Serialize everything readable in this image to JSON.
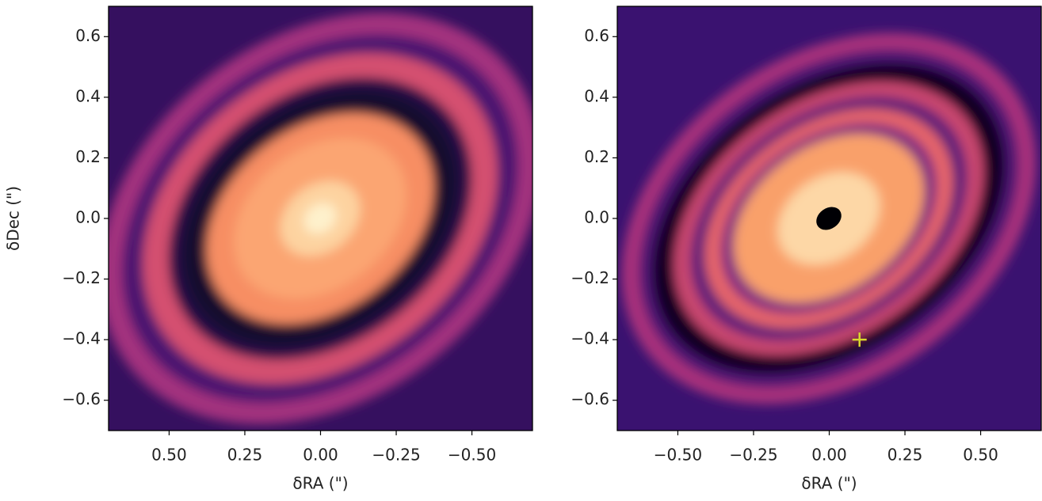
{
  "chart_data": [
    {
      "type": "image",
      "xlabel": "δRA (\")",
      "ylabel": "δDec (\")",
      "xlim": [
        0.7,
        -0.7
      ],
      "ylim": [
        -0.7,
        0.7
      ],
      "xticks": [
        {
          "value": 0.5,
          "label": "0.50"
        },
        {
          "value": 0.25,
          "label": "0.25"
        },
        {
          "value": 0,
          "label": "0.00"
        },
        {
          "value": -0.25,
          "label": "−0.25"
        },
        {
          "value": -0.5,
          "label": "−0.50"
        }
      ],
      "yticks": [
        {
          "value": 0.6,
          "label": "0.6"
        },
        {
          "value": 0.4,
          "label": "0.4"
        },
        {
          "value": 0.2,
          "label": "0.2"
        },
        {
          "value": 0,
          "label": "0.0"
        },
        {
          "value": -0.2,
          "label": "−0.2"
        },
        {
          "value": -0.4,
          "label": "−0.4"
        },
        {
          "value": -0.6,
          "label": "−0.6"
        }
      ],
      "colormap": "magma"
    },
    {
      "type": "image",
      "xlabel": "δRA (\")",
      "xlim": [
        -0.7,
        0.7
      ],
      "ylim": [
        -0.7,
        0.7
      ],
      "xticks": [
        {
          "value": -0.5,
          "label": "−0.50"
        },
        {
          "value": -0.25,
          "label": "−0.25"
        },
        {
          "value": 0,
          "label": "0.00"
        },
        {
          "value": 0.25,
          "label": "0.25"
        },
        {
          "value": 0.5,
          "label": "0.50"
        }
      ],
      "yticks": [
        {
          "value": 0.6,
          "label": "0.6"
        },
        {
          "value": 0.4,
          "label": "0.4"
        },
        {
          "value": 0.2,
          "label": "0.2"
        },
        {
          "value": 0,
          "label": "0.0"
        },
        {
          "value": -0.2,
          "label": "−0.2"
        },
        {
          "value": -0.4,
          "label": "−0.4"
        },
        {
          "value": -0.6,
          "label": "−0.6"
        }
      ],
      "colormap": "magma",
      "markers": {
        "x": [
          0.1
        ],
        "y": [
          -0.4
        ],
        "color": "#d8d82c",
        "marker": "+"
      }
    }
  ]
}
